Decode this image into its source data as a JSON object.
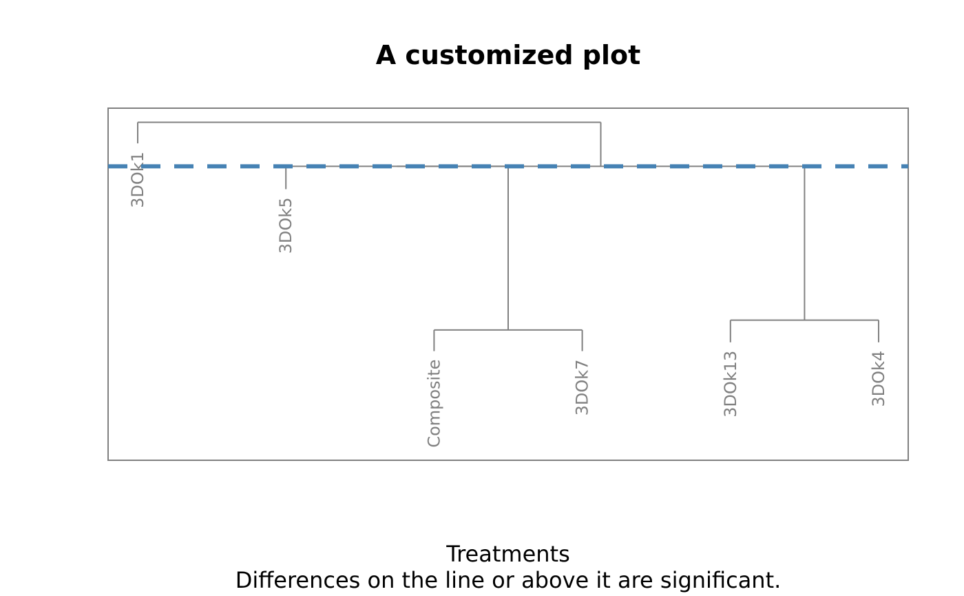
{
  "chart_data": {
    "type": "dendrogram",
    "title": "A customized plot",
    "xlabel": "Treatments",
    "subtitle": "Differences on the line or above it are significant.",
    "ylim": [
      0,
      1
    ],
    "significance_line": {
      "y": 0.835,
      "color": "#4682B4"
    },
    "leaves": [
      {
        "label": "3DOk1",
        "height": 0.9
      },
      {
        "label": "3DOk5",
        "height": 0.77
      },
      {
        "label": "Composite",
        "height": 0.31
      },
      {
        "label": "3DOk7",
        "height": 0.31
      },
      {
        "label": "3DOk13",
        "height": 0.335
      },
      {
        "label": "3DOk4",
        "height": 0.335
      }
    ],
    "merges": [
      {
        "left": 2,
        "right": 3,
        "height": 0.37
      },
      {
        "left": 4,
        "right": 5,
        "height": 0.398
      },
      {
        "left": 1,
        "right": 6,
        "height": 0.835
      },
      {
        "left": 7,
        "right": 8,
        "height": 0.835
      },
      {
        "left": 0,
        "right": 9,
        "height": 0.96
      }
    ],
    "colors": {
      "branch": "#808080",
      "frame": "#808080",
      "label": "#808080"
    }
  }
}
